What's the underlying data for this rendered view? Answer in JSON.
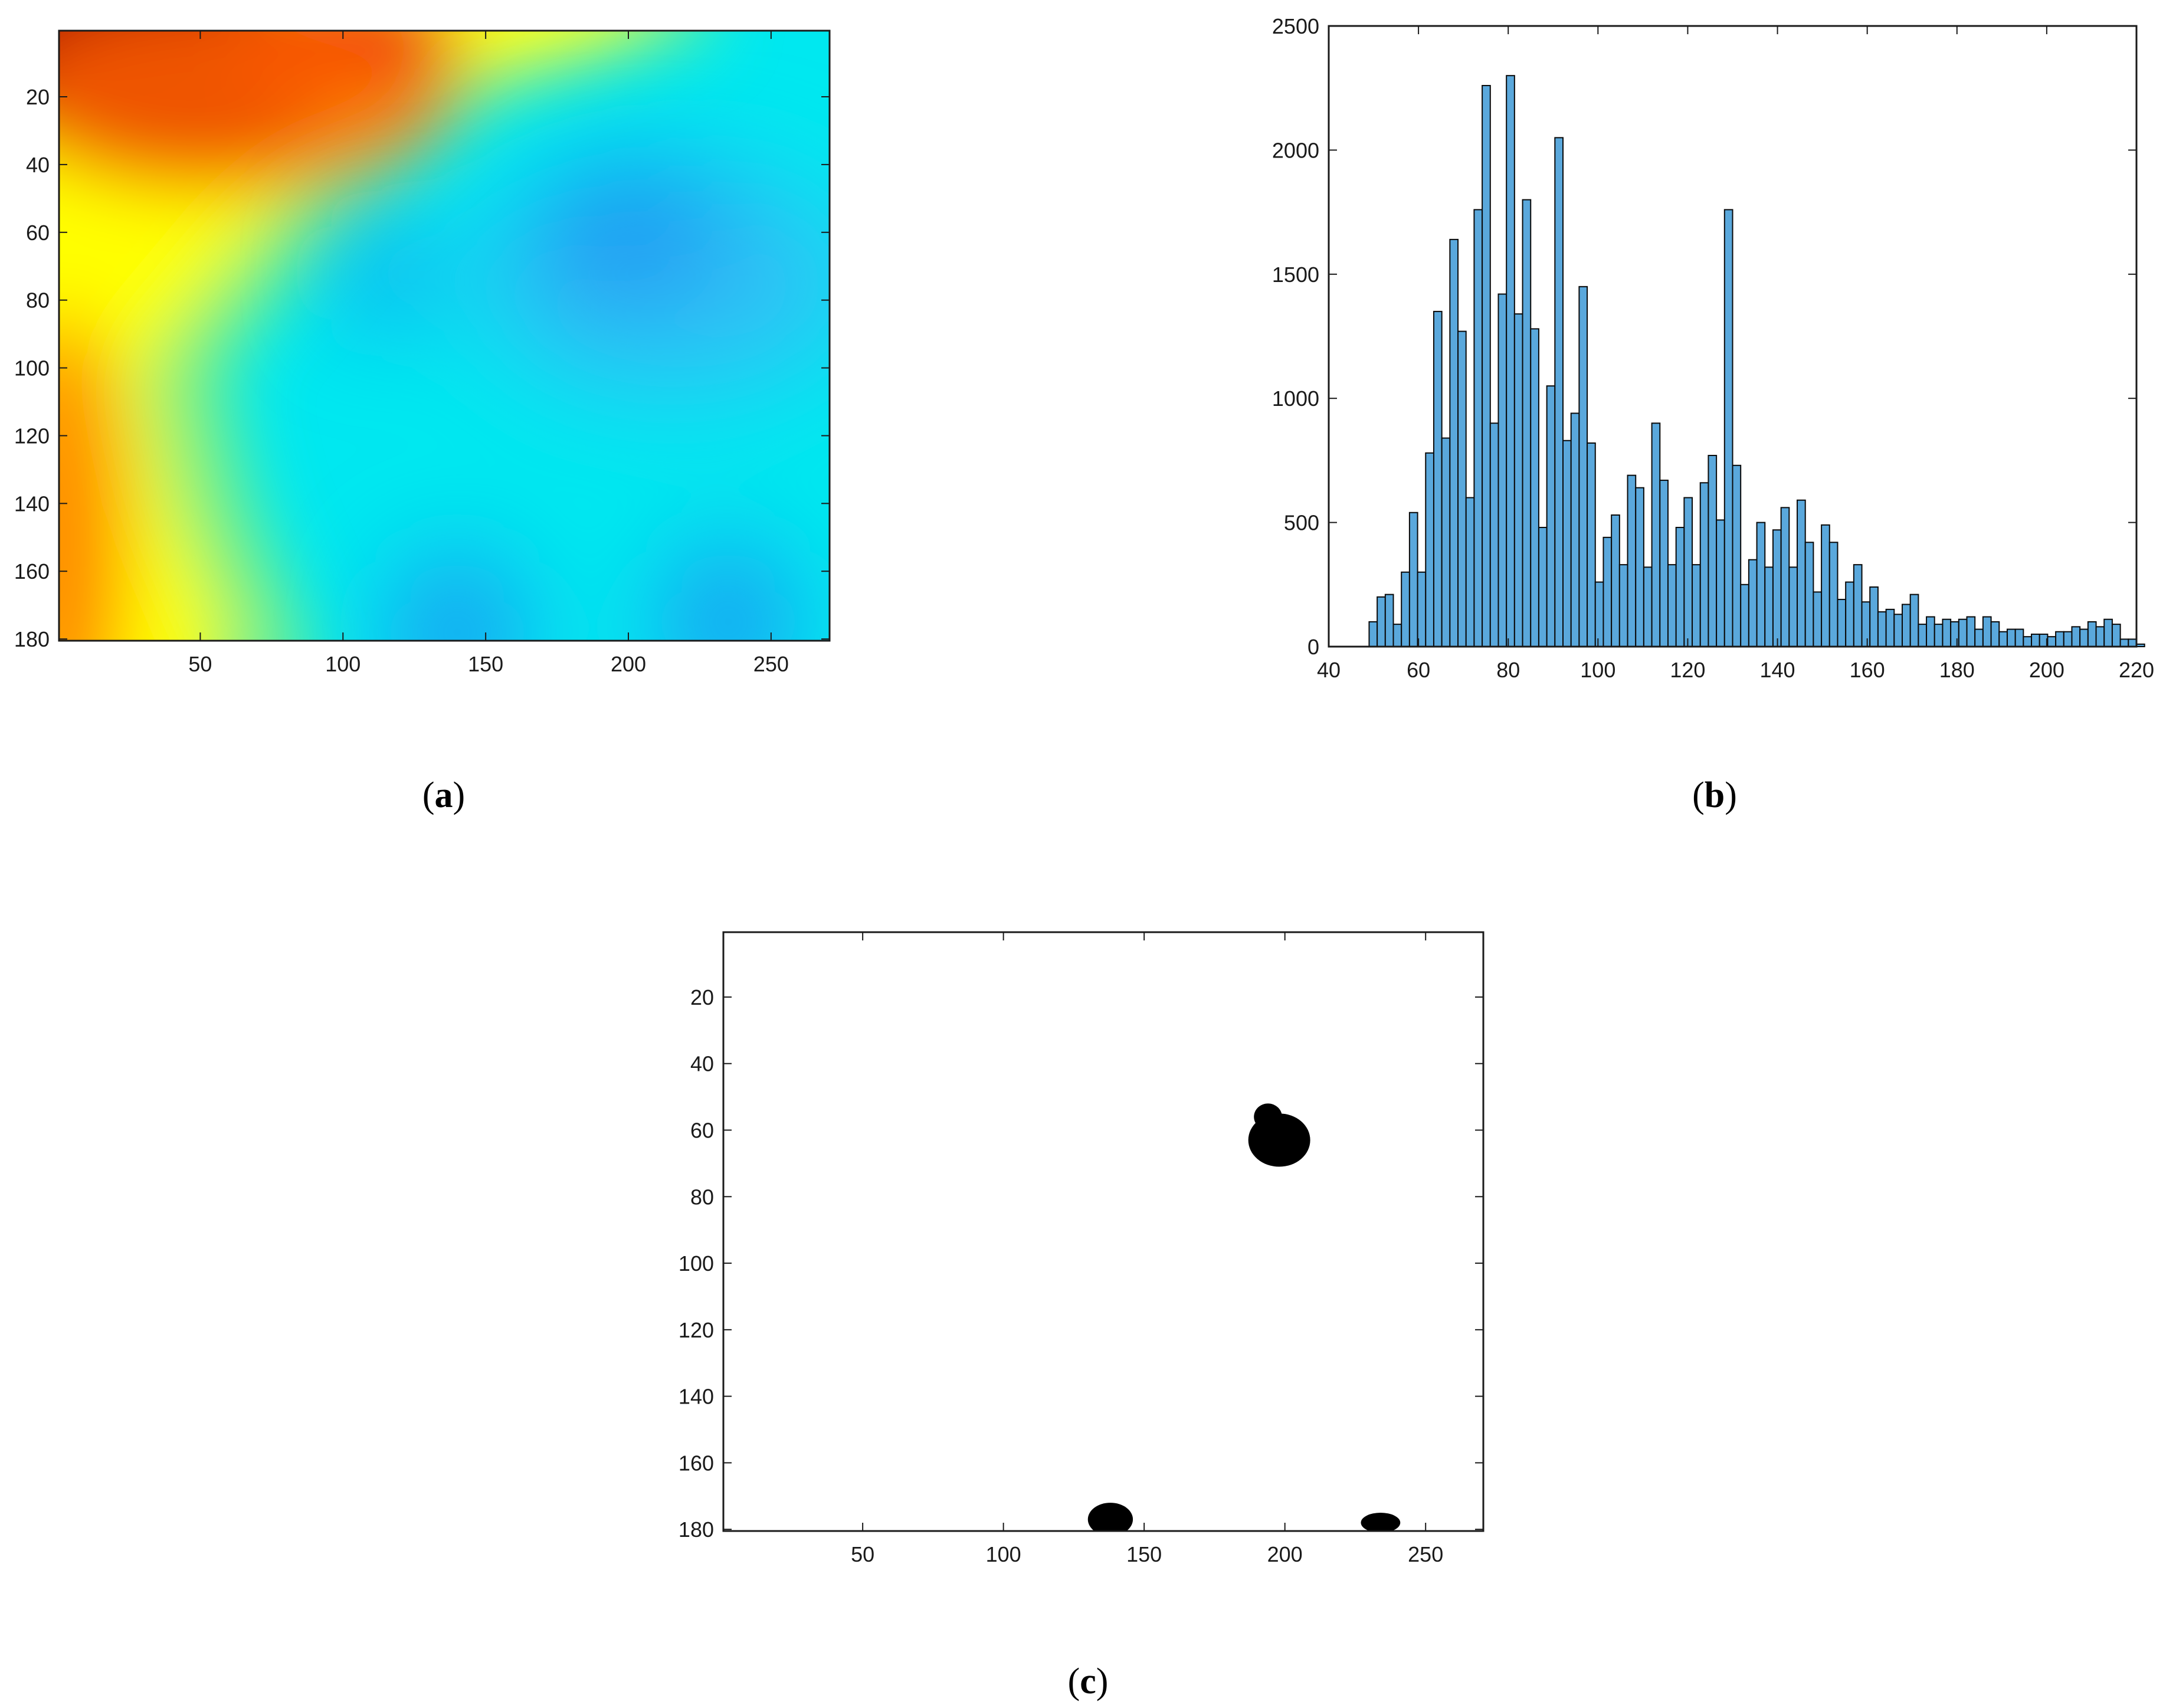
{
  "colors": {
    "axis": "#1a1a1a",
    "bar_fill": "#5aa8dc",
    "bar_edge": "#0a0a0a",
    "blob": "#000000",
    "heatmap_hot": "#7a0000",
    "heatmap_red": "#e31a1c",
    "heatmap_yellow": "#ffff00",
    "heatmap_cyan": "#00ffff",
    "heatmap_blue": "#2196f3"
  },
  "chart_data": [
    {
      "type": "heatmap",
      "caption": "(a)",
      "caption_letter": "a",
      "colormap": "jet",
      "xlim": [
        1,
        270
      ],
      "ylim": [
        1,
        180
      ],
      "y_reversed": true,
      "xticks": [
        50,
        100,
        150,
        200,
        250
      ],
      "yticks": [
        20,
        40,
        60,
        80,
        100,
        120,
        140,
        160,
        180
      ],
      "hot_spots": [
        {
          "x": 15,
          "y": 1,
          "level": 1.0
        },
        {
          "x": 40,
          "y": 10,
          "level": 0.92
        },
        {
          "x": 100,
          "y": 3,
          "level": 0.82
        }
      ],
      "cold_spots": [
        {
          "x": 200,
          "y": 60,
          "level": 0.22
        },
        {
          "x": 115,
          "y": 72,
          "level": 0.32
        },
        {
          "x": 140,
          "y": 178,
          "level": 0.26
        },
        {
          "x": 235,
          "y": 175,
          "level": 0.3
        }
      ],
      "ridge": [
        {
          "y": 1,
          "x": 200
        },
        {
          "y": 20,
          "x": 125
        },
        {
          "y": 40,
          "x": 100
        },
        {
          "y": 60,
          "x": 70
        },
        {
          "y": 100,
          "x": 30
        },
        {
          "y": 140,
          "x": 40
        },
        {
          "y": 180,
          "x": 60
        }
      ]
    },
    {
      "type": "bar",
      "caption": "(b)",
      "caption_letter": "b",
      "xlim": [
        40,
        220
      ],
      "ylim": [
        0,
        2500
      ],
      "xticks": [
        40,
        60,
        80,
        100,
        120,
        140,
        160,
        180,
        200,
        220
      ],
      "yticks": [
        0,
        500,
        1000,
        1500,
        2000,
        2500
      ],
      "grid": false,
      "bin_start": 49,
      "bin_width": 1.8,
      "values": [
        100,
        200,
        210,
        90,
        300,
        540,
        300,
        780,
        1350,
        840,
        1640,
        1270,
        600,
        1760,
        2260,
        900,
        1420,
        2300,
        1340,
        1800,
        1280,
        480,
        1050,
        2050,
        830,
        940,
        1450,
        820,
        260,
        440,
        530,
        330,
        690,
        640,
        320,
        900,
        670,
        330,
        480,
        600,
        330,
        660,
        770,
        510,
        1760,
        730,
        250,
        350,
        500,
        320,
        470,
        560,
        320,
        590,
        420,
        220,
        490,
        420,
        190,
        260,
        330,
        180,
        240,
        140,
        150,
        130,
        170,
        210,
        90,
        120,
        90,
        110,
        100,
        110,
        120,
        70,
        120,
        100,
        60,
        70,
        70,
        40,
        50,
        50,
        40,
        60,
        60,
        80,
        70,
        100,
        80,
        110,
        90,
        30,
        30,
        10
      ]
    },
    {
      "type": "heatmap",
      "caption": "(c)",
      "caption_letter": "c",
      "colormap": "binary",
      "xlim": [
        1,
        270
      ],
      "ylim": [
        1,
        180
      ],
      "y_reversed": true,
      "xticks": [
        50,
        100,
        150,
        200,
        250
      ],
      "yticks": [
        20,
        40,
        60,
        80,
        100,
        120,
        140,
        160,
        180
      ],
      "blobs": [
        {
          "x": 198,
          "y": 63,
          "rx": 11,
          "ry": 8
        },
        {
          "x": 194,
          "y": 56,
          "rx": 5,
          "ry": 4
        },
        {
          "x": 138,
          "y": 177,
          "rx": 8,
          "ry": 5
        },
        {
          "x": 234,
          "y": 178,
          "rx": 7,
          "ry": 3
        }
      ]
    }
  ]
}
